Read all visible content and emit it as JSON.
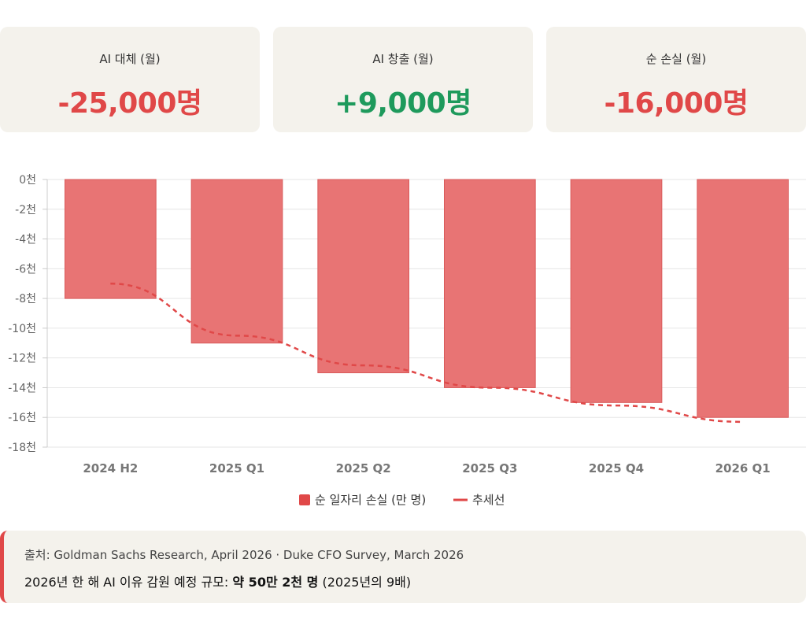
{
  "cards": [
    {
      "label": "AI 대체 (월)",
      "value": "-25,000명",
      "color": "#e04848"
    },
    {
      "label": "AI 창출 (월)",
      "value": "+9,000명",
      "color": "#1e9a5c"
    },
    {
      "label": "순 손실 (월)",
      "value": "-16,000명",
      "color": "#e04848"
    }
  ],
  "chart_data": {
    "type": "bar",
    "categories": [
      "2024 H2",
      "2025 Q1",
      "2025 Q2",
      "2025 Q3",
      "2025 Q4",
      "2026 Q1"
    ],
    "series": [
      {
        "name": "순 일자리 손실 (만 명)",
        "values": [
          -8000,
          -11000,
          -13000,
          -14000,
          -15000,
          -16000
        ],
        "color": "#e87474"
      },
      {
        "name": "추세선",
        "type": "line",
        "style": "dashed",
        "values": [
          -7000,
          -10500,
          -12500,
          -14000,
          -15200,
          -16300
        ],
        "color": "#e04848"
      }
    ],
    "y_ticks": [
      "0천",
      "-2천",
      "-4천",
      "-6천",
      "-8천",
      "-10천",
      "-12천",
      "-14천",
      "-16천",
      "-18천"
    ],
    "ylim": [
      -18000,
      0
    ],
    "grid": true,
    "legend_position": "bottom"
  },
  "note": {
    "source": "출처: Goldman Sachs Research, April 2026 · Duke CFO Survey, March 2026",
    "summary_prefix": "2026년 한 해 AI 이유 감원 예정 규모: ",
    "summary_bold": "약 50만 2천 명",
    "summary_suffix": " (2025년의 9배)"
  }
}
